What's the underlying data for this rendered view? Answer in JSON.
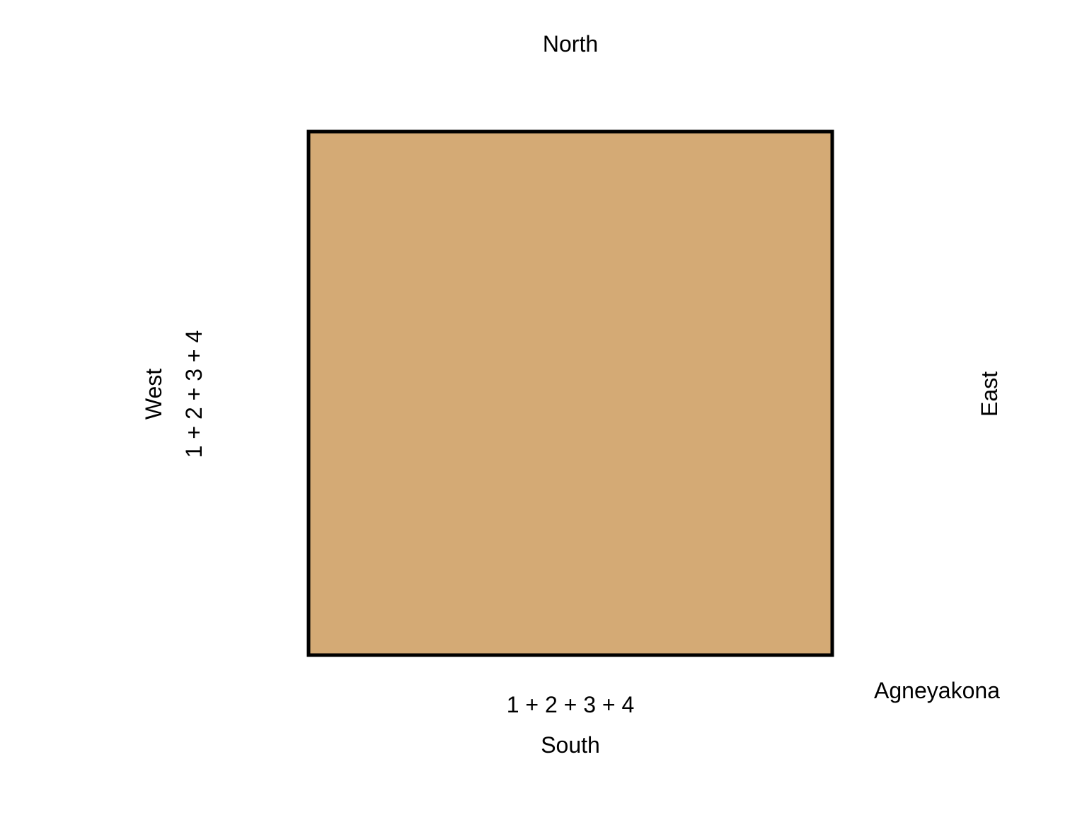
{
  "diagram": {
    "directions": {
      "north": "North",
      "south": "South",
      "east": "East",
      "west": "West"
    },
    "side_labels": {
      "south": "1 + 2 + 3 + 4",
      "west": "1 + 2 + 3 + 4"
    },
    "corner_label": "Agneyakona",
    "plot_fill": "#d4aa75",
    "plot_stroke": "#000000"
  }
}
